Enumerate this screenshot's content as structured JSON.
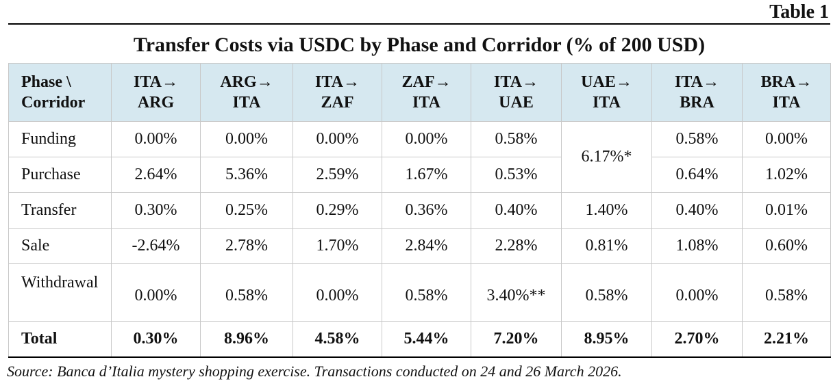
{
  "table_number": "Table 1",
  "title": "Transfer Costs via USDC by Phase and Corridor (% of 200 USD)",
  "source": "Source: Banca d’Italia mystery shopping exercise. Transactions conducted on 24 and 26 March 2026.",
  "chart_data": {
    "type": "table",
    "corner_header_line1": "Phase \\",
    "corner_header_line2": "Corridor",
    "columns": [
      {
        "line1": "ITA→",
        "line2": "ARG"
      },
      {
        "line1": "ARG→",
        "line2": "ITA"
      },
      {
        "line1": "ITA→",
        "line2": "ZAF"
      },
      {
        "line1": "ZAF→",
        "line2": "ITA"
      },
      {
        "line1": "ITA→",
        "line2": "UAE"
      },
      {
        "line1": "UAE→",
        "line2": "ITA"
      },
      {
        "line1": "ITA→",
        "line2": "BRA"
      },
      {
        "line1": "BRA→",
        "line2": "ITA"
      }
    ],
    "rows": [
      {
        "phase": "Funding",
        "values": [
          "0.00%",
          "0.00%",
          "0.00%",
          "0.00%",
          "0.58%",
          "6.17%*",
          "0.58%",
          "0.00%"
        ]
      },
      {
        "phase": "Purchase",
        "values": [
          "2.64%",
          "5.36%",
          "2.59%",
          "1.67%",
          "0.53%",
          null,
          "0.64%",
          "1.02%"
        ]
      },
      {
        "phase": "Transfer",
        "values": [
          "0.30%",
          "0.25%",
          "0.29%",
          "0.36%",
          "0.40%",
          "1.40%",
          "0.40%",
          "0.01%"
        ]
      },
      {
        "phase": "Sale",
        "values": [
          "-2.64%",
          "2.78%",
          "1.70%",
          "2.84%",
          "2.28%",
          "0.81%",
          "1.08%",
          "0.60%"
        ]
      },
      {
        "phase": "Withdrawal",
        "values": [
          "0.00%",
          "0.58%",
          "0.00%",
          "0.58%",
          "3.40%**",
          "0.58%",
          "0.00%",
          "0.58%"
        ]
      },
      {
        "phase": "Total",
        "values": [
          "0.30%",
          "8.96%",
          "4.58%",
          "5.44%",
          "7.20%",
          "8.95%",
          "2.70%",
          "2.21%"
        ]
      }
    ],
    "notes": "UAE→ITA Funding and Purchase share a single merged value of 6.17%*"
  }
}
